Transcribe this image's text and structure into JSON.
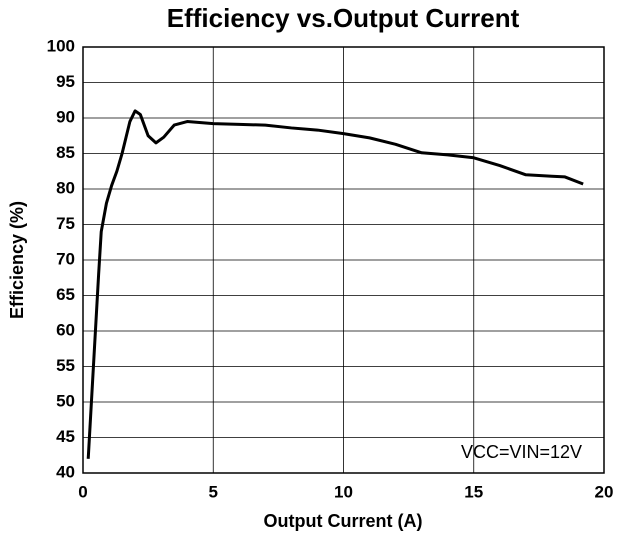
{
  "chart_data": {
    "type": "line",
    "title": "Efficiency vs.Output Current",
    "x_label": "Output Current (A)",
    "y_label": "Efficiency (%)",
    "annotation": "VCC=VIN=12V",
    "xlim": [
      0,
      20
    ],
    "xticks": [
      0,
      5,
      10,
      15,
      20
    ],
    "ylim": [
      40,
      100
    ],
    "yticks": [
      40,
      45,
      50,
      55,
      60,
      65,
      70,
      75,
      80,
      85,
      90,
      95,
      100
    ],
    "grid": true,
    "series": [
      {
        "color": "#000000",
        "x": [
          0.2,
          0.4,
          0.6,
          0.7,
          0.9,
          1.1,
          1.3,
          1.5,
          1.8,
          2.0,
          2.2,
          2.5,
          2.8,
          3.1,
          3.5,
          4.0,
          5,
          6,
          7,
          8,
          9,
          10,
          11,
          12,
          13,
          14,
          15,
          16,
          17,
          18,
          18.5,
          19.2
        ],
        "values": [
          42,
          55,
          68,
          74,
          78,
          80.5,
          82.5,
          85,
          89.5,
          91,
          90.5,
          87.5,
          86.5,
          87.3,
          89,
          89.5,
          89.2,
          89.1,
          89.0,
          88.6,
          88.3,
          87.8,
          87.2,
          86.3,
          85.1,
          84.8,
          84.4,
          83.3,
          82.0,
          81.8,
          81.7,
          80.7
        ]
      }
    ]
  }
}
